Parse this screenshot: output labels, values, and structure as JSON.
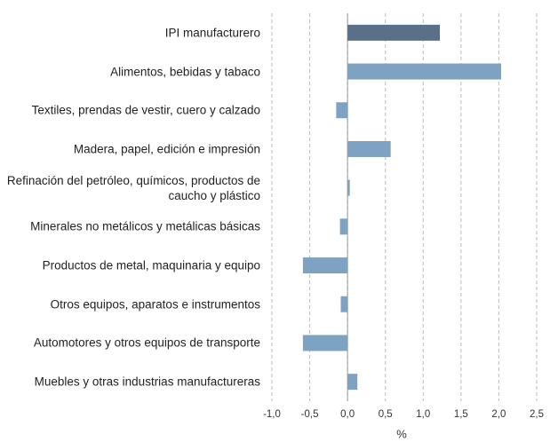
{
  "chart_data": {
    "type": "bar",
    "orientation": "horizontal",
    "categories": [
      "IPI manufacturero",
      "Alimentos, bebidas y tabaco",
      "Textiles, prendas de vestir, cuero y calzado",
      "Madera, papel, edición e impresión",
      "Refinación del petróleo, químicos, productos de caucho y plástico",
      "Minerales no metálicos y metálicas básicas",
      "Productos de metal, maquinaria y equipo",
      "Otros equipos, aparatos e instrumentos",
      "Automotores y otros equipos de transporte",
      "Muebles y otras industrias manufactureras"
    ],
    "values": [
      1.22,
      2.03,
      -0.15,
      0.57,
      0.03,
      -0.1,
      -0.59,
      -0.09,
      -0.59,
      0.13
    ],
    "colors": [
      "#5a7089",
      "#7da2c2",
      "#7da2c2",
      "#7da2c2",
      "#7da2c2",
      "#7da2c2",
      "#7da2c2",
      "#7da2c2",
      "#7da2c2",
      "#7da2c2"
    ],
    "xlabel": "%",
    "xlim": [
      -1.0,
      2.5
    ],
    "xticks": [
      {
        "value": -1.0,
        "label": "-1,0"
      },
      {
        "value": -0.5,
        "label": "-0,5"
      },
      {
        "value": 0,
        "label": "0,0"
      },
      {
        "value": 0.5,
        "label": "0,5"
      },
      {
        "value": 1.0,
        "label": "1,0"
      },
      {
        "value": 1.5,
        "label": "1,5"
      },
      {
        "value": 2.0,
        "label": "2,0"
      },
      {
        "value": 2.5,
        "label": "2,5"
      }
    ],
    "grid": true
  }
}
